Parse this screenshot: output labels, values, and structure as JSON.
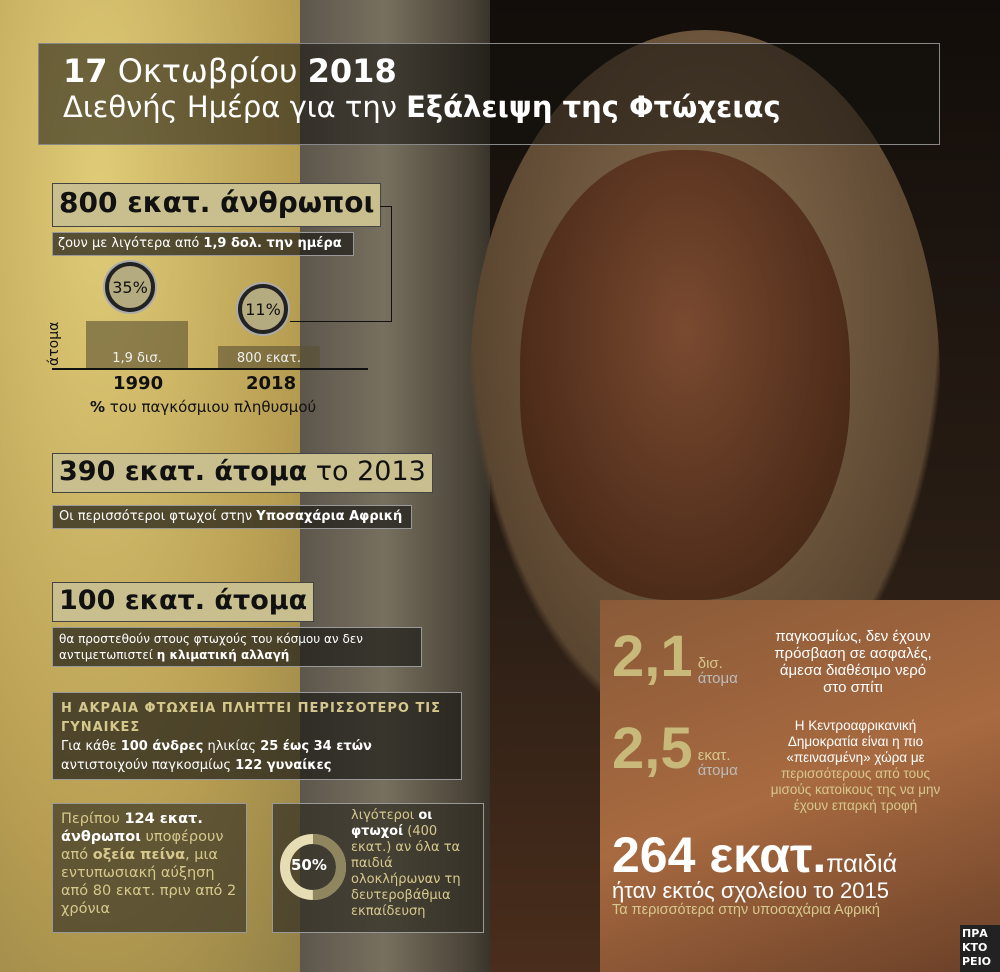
{
  "title": {
    "date_num": "17",
    "date_month": " Οκτωβρίου ",
    "date_year": "2018",
    "line2_pre": "Διεθνής Ημέρα για την ",
    "line2_bold": "Εξάλειψη της Φτώχειας"
  },
  "stat1": {
    "headline": "800 εκατ. άνθρωποι",
    "sub_pre": "ζουν με λιγότερα από ",
    "sub_bold": "1,9 δολ. την ημέρα"
  },
  "mini_chart": {
    "ylabel": "άτομα",
    "caption_bold": "%",
    "caption": " του παγκόσμιου πληθυσμού",
    "bars": [
      {
        "year": "1990",
        "label": "1,9 δισ.",
        "percent": "35%",
        "value_people": 1900000000,
        "share": 35
      },
      {
        "year": "2018",
        "label": "800 εκατ.",
        "percent": "11%",
        "value_people": 800000000,
        "share": 11
      }
    ]
  },
  "stat2": {
    "headline_bold": "390 εκατ. άτομα",
    "headline_rest": " το 2013",
    "sub_pre": "Οι περισσότεροι φτωχοί στην ",
    "sub_bold": "Υποσαχάρια Αφρική"
  },
  "stat3": {
    "headline": "100 εκατ. άτομα",
    "sub_l1": "θα προστεθούν στους φτωχούς του κόσμου αν δεν",
    "sub_l2_pre": "αντιμετωπιστεί ",
    "sub_l2_bold": "η κλιματική αλλαγή"
  },
  "women": {
    "heading": "Η ΑΚΡΑΙΑ ΦΤΩΧΕΙΑ ΠΛΗΤΤΕΙ ΠΕΡΙΣΣΟΤΕΡΟ ΤΙΣ ΓΥΝΑΙΚΕΣ",
    "t1": "Για κάθε ",
    "b1": "100 άνδρες",
    "t2": " ηλικίας ",
    "b2": "25 έως 34 ετών",
    "t3": "αντιστοιχούν παγκοσμίως ",
    "b3": "122 γυναίκες"
  },
  "hunger": {
    "t1": "Περίπου ",
    "b1": "124 εκατ. άνθρωποι",
    "t2": " υποφέρουν από ",
    "b2": "οξεία πείνα",
    "t3": ", μια εντυπωσιακή αύξηση από 80 εκατ. πριν από 2 χρόνια"
  },
  "education": {
    "percent": "50%",
    "share": 50,
    "t1": "λιγότεροι ",
    "b1": "οι φτωχοί",
    "t2": " (400 εκατ.) αν όλα τα παιδιά ολοκλήρωναν τη δευτεροβάθμια εκπαίδευση"
  },
  "water": {
    "big": "2,1",
    "unit1": "δισ.",
    "unit2": "άτομα",
    "text": "παγκοσμίως, δεν έχουν πρόσβαση σε ασφαλές, άμεσα διαθέσιμο νερό στο σπίτι"
  },
  "car": {
    "big": "2,5",
    "unit1": "εκατ.",
    "unit2": "άτομα",
    "text": "Η Κεντροαφρικανική Δημοκρατία είναι η πιο «πεινασμένη» χώρα με ",
    "gold": "περισσότερους από τους μισούς κατοίκους της να μην έχουν επαρκή τροφή"
  },
  "school": {
    "big": "264 εκατ.",
    "word": "παιδιά",
    "line2": "ήταν εκτός σχολείου το 2015",
    "line3": "Τα περισσότερα στην υποσαχάρια Αφρική"
  },
  "logo": {
    "text": "ΠΡΑ ΚΤΟ ΡΕΙΟ"
  },
  "colors": {
    "accent": "#c8b87a",
    "khaki": "#c9bf8e"
  }
}
